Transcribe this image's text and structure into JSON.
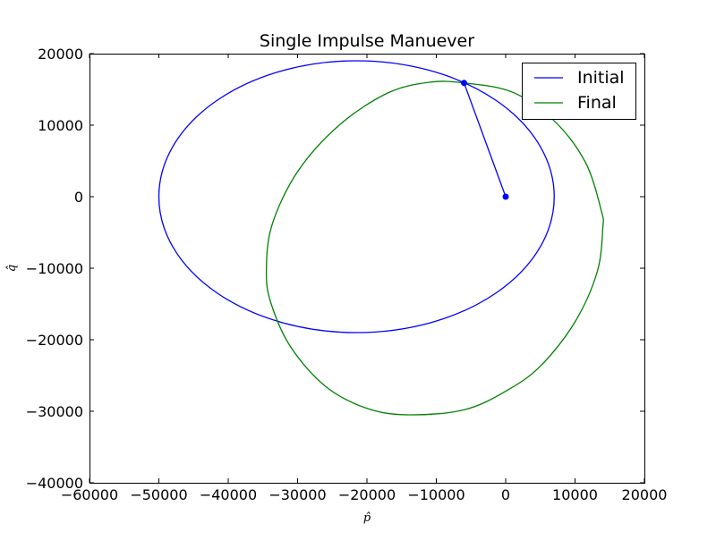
{
  "chart_data": {
    "type": "line",
    "title": "Single Impulse Manuever",
    "xlabel": "p̂",
    "ylabel": "q̂",
    "xlim": [
      -60000,
      20000
    ],
    "ylim": [
      -40000,
      20000
    ],
    "xticks": [
      -60000,
      -50000,
      -40000,
      -30000,
      -20000,
      -10000,
      0,
      10000,
      20000
    ],
    "yticks": [
      -40000,
      -30000,
      -20000,
      -10000,
      0,
      10000,
      20000
    ],
    "xtick_labels": [
      "−60000",
      "−50000",
      "−40000",
      "−30000",
      "−20000",
      "−10000",
      "0",
      "10000",
      "20000"
    ],
    "ytick_labels": [
      "−40000",
      "−30000",
      "−20000",
      "−10000",
      "0",
      "10000",
      "20000"
    ],
    "grid": false,
    "legend_position": "top-right",
    "series": [
      {
        "name": "Initial",
        "color": "#0000ff",
        "shape": "ellipse",
        "center": [
          -21500,
          0
        ],
        "semi_axis_p": 28500,
        "semi_axis_q": 19000
      },
      {
        "name": "Final",
        "color": "#008000",
        "shape": "closed-curve",
        "points": [
          [
            -6000,
            15900
          ],
          [
            1000,
            14600
          ],
          [
            7000,
            10600
          ],
          [
            11500,
            4800
          ],
          [
            13800,
            -2000
          ],
          [
            14000,
            -4400
          ],
          [
            13200,
            -10500
          ],
          [
            10000,
            -17500
          ],
          [
            5000,
            -23700
          ],
          [
            0,
            -27200
          ],
          [
            -6000,
            -29800
          ],
          [
            -14000,
            -30500
          ],
          [
            -20000,
            -29600
          ],
          [
            -26000,
            -26500
          ],
          [
            -31000,
            -21000
          ],
          [
            -33800,
            -15000
          ],
          [
            -34500,
            -10500
          ],
          [
            -33700,
            -4000
          ],
          [
            -30000,
            3500
          ],
          [
            -24000,
            10000
          ],
          [
            -17000,
            14500
          ],
          [
            -11000,
            16000
          ]
        ]
      },
      {
        "name": "",
        "color": "#0000ff",
        "shape": "segment",
        "markers": true,
        "points": [
          [
            -6000,
            15900
          ],
          [
            0,
            0
          ]
        ]
      }
    ]
  }
}
